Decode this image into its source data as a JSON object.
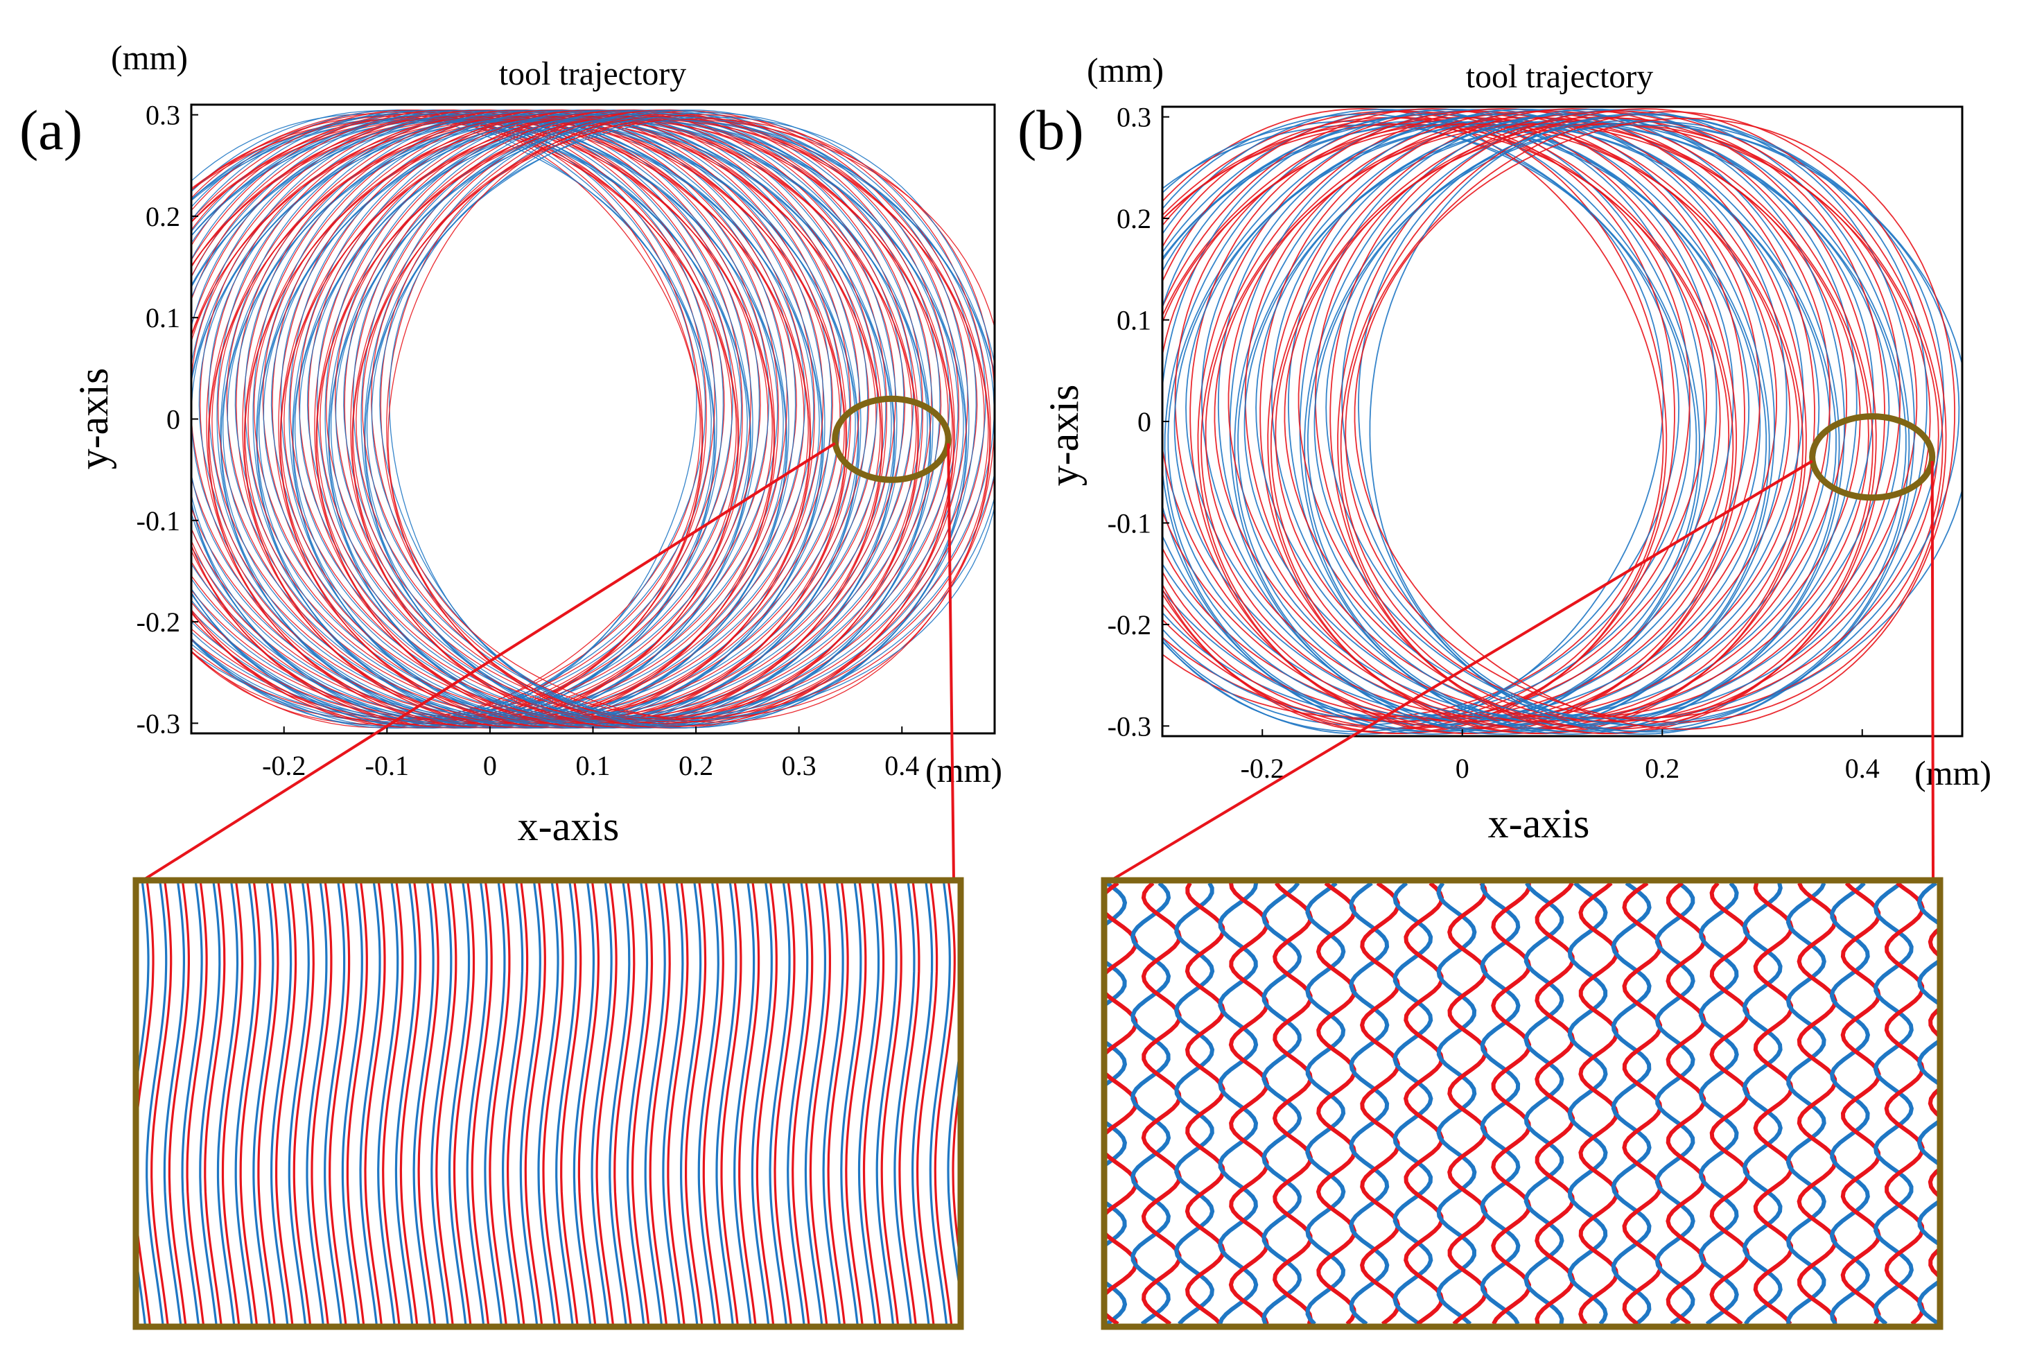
{
  "figure": {
    "accent_colors": {
      "red": "#e8141b",
      "blue": "#1f77c4",
      "highlight": "#7f6514"
    },
    "zoom_callout": "zoomed detail of the circled region"
  },
  "chart_data": [
    {
      "panel": "(a)",
      "type": "line",
      "title": "tool trajectory",
      "xlabel": "x-axis",
      "ylabel": "y-axis",
      "x_unit": "(mm)",
      "y_unit": "(mm)",
      "xlim": [
        -0.29,
        0.49
      ],
      "ylim": [
        -0.31,
        0.31
      ],
      "xticks": [
        -0.2,
        -0.1,
        0,
        0.1,
        0.2,
        0.3,
        0.4
      ],
      "xtick_labels": [
        "-0.2",
        "-0.1",
        "0",
        "0.1",
        "0.2",
        "0.3",
        "0.4"
      ],
      "yticks": [
        0.3,
        0.2,
        0.1,
        0,
        -0.1,
        -0.2,
        -0.3
      ],
      "ytick_labels": [
        "0.3",
        "0.2",
        "0.1",
        "0",
        "-0.1",
        "-0.2",
        "-0.3"
      ],
      "circle_radius": 0.3,
      "circle_center_x_start": -0.1,
      "circle_center_x_end": 0.2,
      "feed_step": 0.005,
      "wave_amplitude": 0.005,
      "wave_cycles_per_loop": 4,
      "highlight_ellipse": {
        "cx": 0.39,
        "cy": -0.02,
        "rx": 0.055,
        "ry": 0.04
      },
      "series": [
        {
          "color": "#1f77c4",
          "phase": 0
        },
        {
          "color": "#e8141b",
          "phase": 0.35
        }
      ],
      "grid": false,
      "zoom_pattern": "dense parallel waves"
    },
    {
      "panel": "(b)",
      "type": "line",
      "title": "tool trajectory",
      "xlabel": "x-axis",
      "ylabel": "y-axis",
      "x_unit": "(mm)",
      "y_unit": "(mm)",
      "xlim": [
        -0.3,
        0.5
      ],
      "ylim": [
        -0.31,
        0.31
      ],
      "xticks": [
        -0.2,
        0,
        0.2,
        0.4
      ],
      "xtick_labels": [
        "-0.2",
        "0",
        "0.2",
        "0.4"
      ],
      "yticks": [
        0.3,
        0.2,
        0.1,
        0,
        -0.1,
        -0.2,
        -0.3
      ],
      "ytick_labels": [
        "0.3",
        "0.2",
        "0.1",
        "0",
        "-0.1",
        "-0.2",
        "-0.3"
      ],
      "circle_radius": 0.3,
      "circle_center_x_start": -0.1,
      "circle_center_x_end": 0.2,
      "feed_step": 0.01,
      "wave_amplitude": 0.008,
      "wave_cycles_per_loop": 3,
      "highlight_ellipse": {
        "cx": 0.41,
        "cy": -0.035,
        "rx": 0.06,
        "ry": 0.04
      },
      "series": [
        {
          "color": "#1f77c4",
          "phase": 0
        },
        {
          "color": "#e8141b",
          "phase": 0.5
        }
      ],
      "grid": false,
      "zoom_pattern": "interlaced crossing waves"
    }
  ]
}
